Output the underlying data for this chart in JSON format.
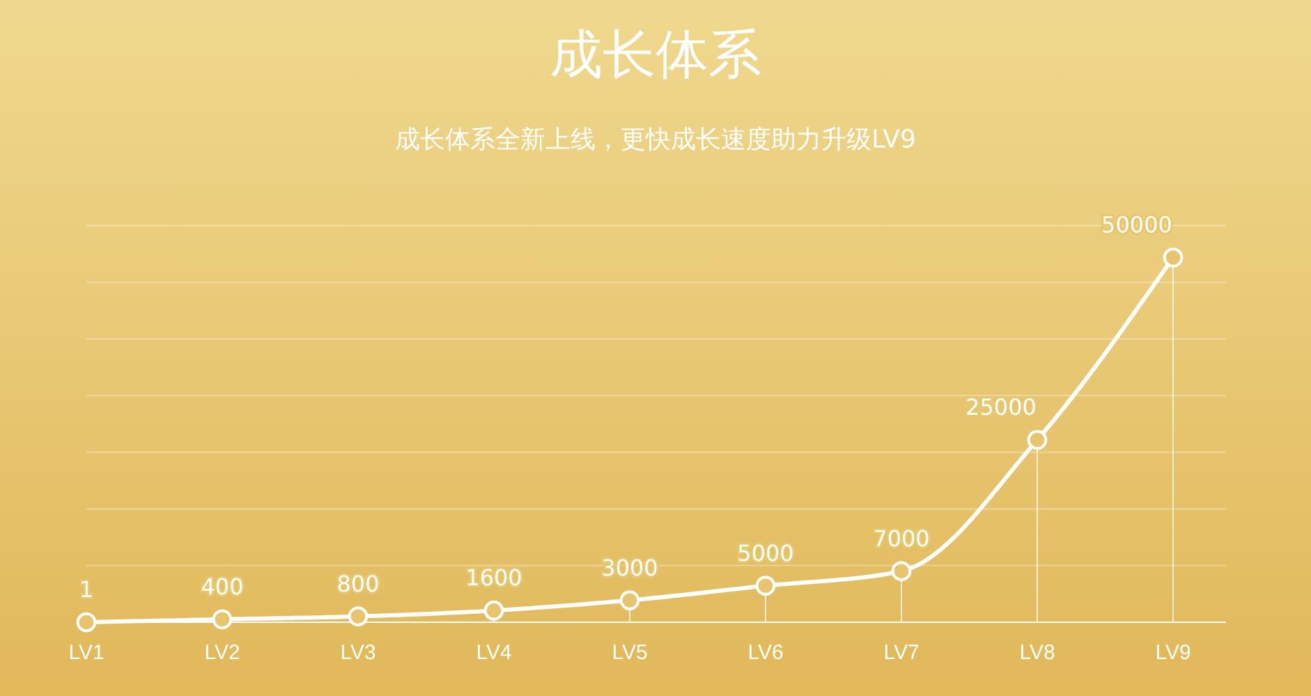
{
  "chart_data": {
    "type": "line",
    "title": "成长体系",
    "subtitle": "成长体系全新上线，更快成长速度助力升级LV9",
    "categories": [
      "LV1",
      "LV2",
      "LV3",
      "LV4",
      "LV5",
      "LV6",
      "LV7",
      "LV8",
      "LV9"
    ],
    "series": [
      {
        "color": "#ffffff",
        "values": [
          1,
          400,
          800,
          1600,
          3000,
          5000,
          7000,
          25000,
          50000
        ]
      }
    ],
    "data_labels": true,
    "marker": "circle",
    "grid": true
  }
}
